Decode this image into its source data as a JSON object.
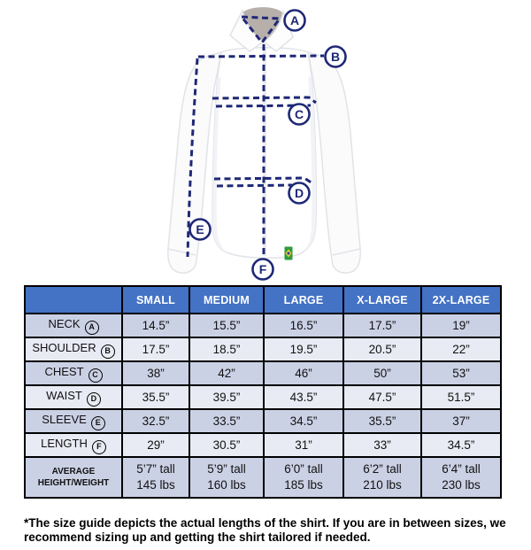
{
  "figure": {
    "description": "White dress shirt with dashed measurement lines",
    "markers": [
      {
        "letter": "A"
      },
      {
        "letter": "B"
      },
      {
        "letter": "C"
      },
      {
        "letter": "D"
      },
      {
        "letter": "E"
      },
      {
        "letter": "F"
      }
    ]
  },
  "table": {
    "columns": [
      "SMALL",
      "MEDIUM",
      "LARGE",
      "X-LARGE",
      "2X-LARGE"
    ],
    "rows": [
      {
        "label": "NECK",
        "letter": "A",
        "values": [
          "14.5”",
          "15.5”",
          "16.5”",
          "17.5”",
          "19”"
        ]
      },
      {
        "label": "SHOULDER",
        "letter": "B",
        "values": [
          "17.5”",
          "18.5”",
          "19.5”",
          "20.5”",
          "22”"
        ]
      },
      {
        "label": "CHEST",
        "letter": "C",
        "values": [
          "38”",
          "42”",
          "46”",
          "50”",
          "53”"
        ]
      },
      {
        "label": "WAIST",
        "letter": "D",
        "values": [
          "35.5”",
          "39.5”",
          "43.5”",
          "47.5”",
          "51.5”"
        ]
      },
      {
        "label": "SLEEVE",
        "letter": "E",
        "values": [
          "32.5”",
          "33.5”",
          "34.5”",
          "35.5”",
          "37”"
        ]
      },
      {
        "label": "LENGTH",
        "letter": "F",
        "values": [
          "29”",
          "30.5”",
          "31”",
          "33”",
          "34.5”"
        ]
      },
      {
        "label": "AVERAGE\nHEIGHT/WEIGHT",
        "letter": null,
        "values": [
          "5’7” tall\n145 lbs",
          "5’9” tall\n160 lbs",
          "6’0” tall\n185 lbs",
          "6’2” tall\n210 lbs",
          "6’4” tall\n230 lbs"
        ]
      }
    ]
  },
  "footnote": "*The size guide depicts the actual lengths of the shirt. If you are in between sizes, we recommend sizing up and getting the shirt tailored if needed.",
  "colors": {
    "header_blue": "#4472C4",
    "row_dark": "#CBD1E5",
    "row_light": "#E9EBF4",
    "line_navy": "#1E2876",
    "tag_green": "#2C9B3F"
  }
}
